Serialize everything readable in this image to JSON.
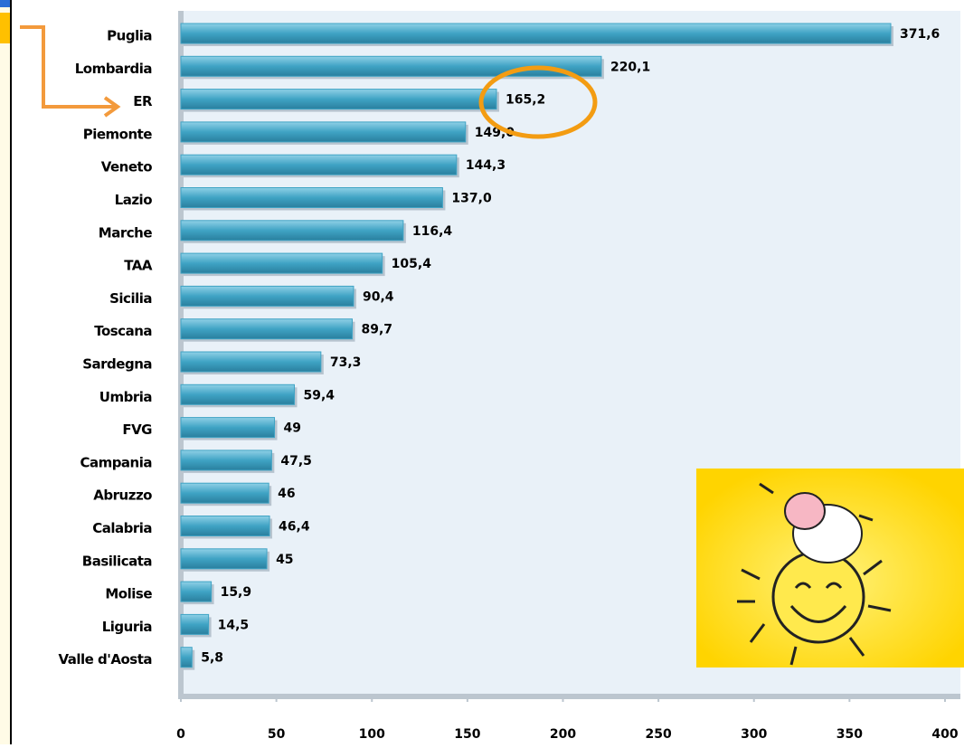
{
  "chart_data": {
    "type": "bar",
    "orientation": "horizontal",
    "categories": [
      "Puglia",
      "Lombardia",
      "ER",
      "Piemonte",
      "Veneto",
      "Lazio",
      "Marche",
      "TAA",
      "Sicilia",
      "Toscana",
      "Sardegna",
      "Umbria",
      "FVG",
      "Campania",
      "Abruzzo",
      "Calabria",
      "Basilicata",
      "Molise",
      "Liguria",
      "Valle d'Aosta"
    ],
    "values": [
      371.6,
      220.1,
      165.2,
      149.0,
      144.3,
      137.0,
      116.4,
      105.4,
      90.4,
      89.7,
      73.3,
      59.4,
      49,
      47.5,
      46,
      46.4,
      45,
      15.9,
      14.5,
      5.8
    ],
    "value_labels": [
      "371,6",
      "220,1",
      "165,2",
      "149,0",
      "144,3",
      "137,0",
      "116,4",
      "105,4",
      "90,4",
      "89,7",
      "73,3",
      "59,4",
      "49",
      "47,5",
      "46",
      "46,4",
      "45",
      "15,9",
      "14,5",
      "5,8"
    ],
    "color": "#3fa3c4",
    "xlim": [
      0,
      400
    ],
    "xticks": [
      0,
      50,
      100,
      150,
      200,
      250,
      300,
      350,
      400
    ]
  }
}
